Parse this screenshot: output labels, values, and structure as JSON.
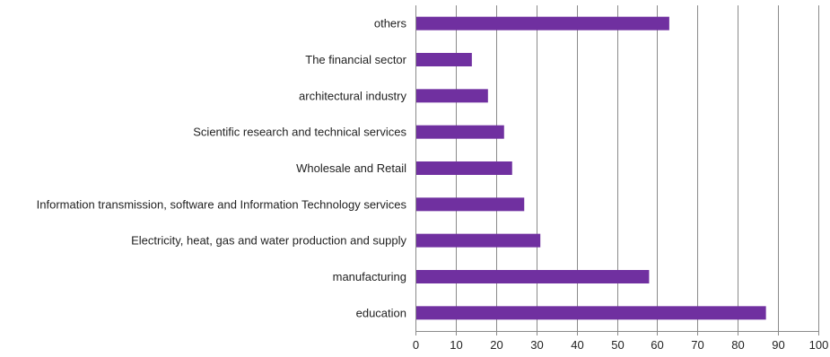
{
  "chart_data": {
    "type": "bar",
    "orientation": "horizontal",
    "title": "",
    "xlabel": "",
    "ylabel": "",
    "categories": [
      "others",
      "The financial sector",
      "architectural industry",
      "Scientific research and technical services",
      "Wholesale and Retail",
      "Information transmission, software and Information Technology services",
      "Electricity, heat, gas and water production and supply",
      "manufacturing",
      "education"
    ],
    "values": [
      63,
      14,
      18,
      22,
      24,
      27,
      31,
      58,
      87
    ],
    "xlim": [
      0,
      100
    ],
    "xticks": [
      "0",
      "10",
      "20",
      "30",
      "40",
      "50",
      "60",
      "70",
      "80",
      "90",
      "100"
    ],
    "grid": "vertical",
    "legend": "none",
    "bar_color": "#7030a0"
  }
}
